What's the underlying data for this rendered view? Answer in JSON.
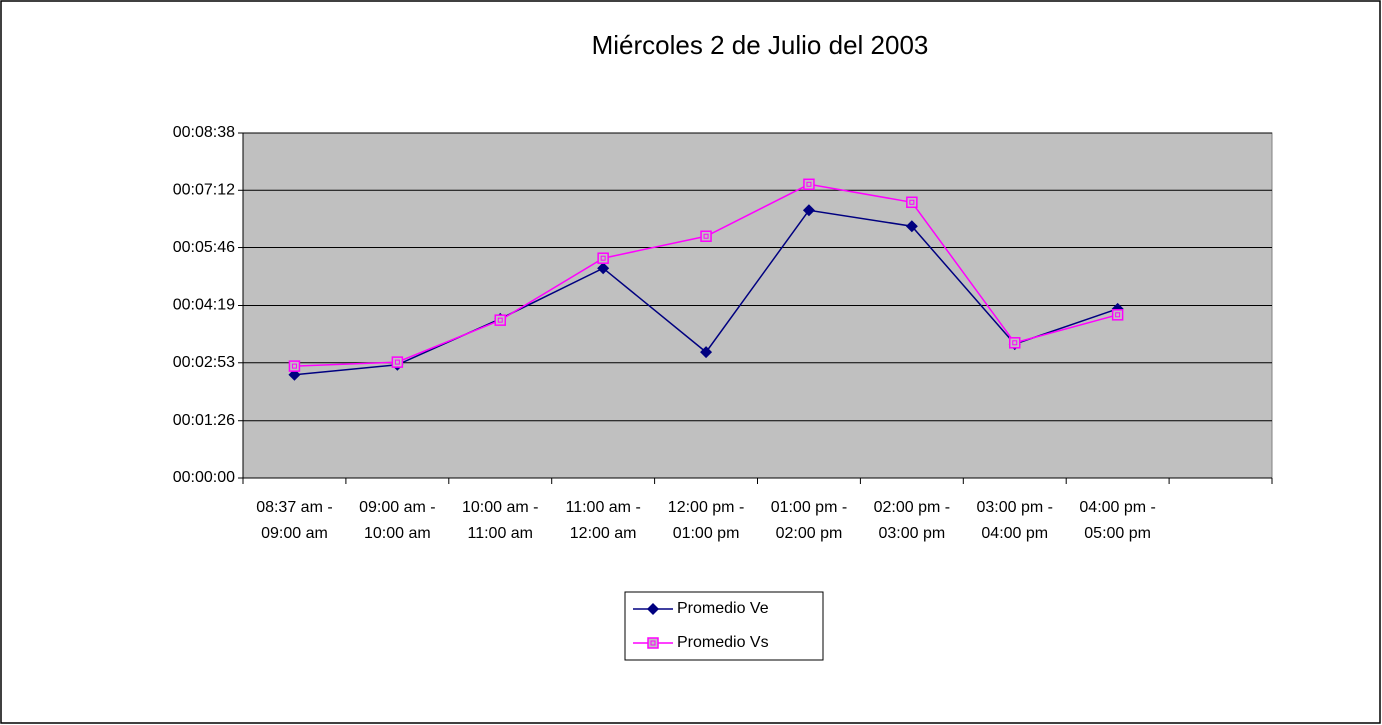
{
  "chart_data": {
    "type": "line",
    "title": "Miércoles 2 de Julio del 2003",
    "categories": [
      "08:37 am - 09:00 am",
      "09:00 am - 10:00 am",
      "10:00 am - 11:00 am",
      "11:00 am - 12:00 am",
      "12:00 pm - 01:00 pm",
      "01:00 pm - 02:00 pm",
      "02:00 pm - 03:00 pm",
      "03:00 pm - 04:00 pm",
      "04:00 pm - 05:00 pm",
      null
    ],
    "series": [
      {
        "name": "Promedio Ve",
        "color": "#000080",
        "marker": "diamond",
        "values": [
          155,
          170,
          239,
          315,
          189,
          402,
          378,
          201,
          254,
          null
        ]
      },
      {
        "name": "Promedio Vs",
        "color": "#ff00ff",
        "marker": "square",
        "values": [
          168,
          174,
          237,
          330,
          363,
          441,
          414,
          203,
          245,
          null
        ]
      }
    ],
    "ylim": [
      0,
      518
    ],
    "yticks": [
      {
        "value": 0,
        "label": "00:00:00"
      },
      {
        "value": 86,
        "label": "00:01:26"
      },
      {
        "value": 173,
        "label": "00:02:53"
      },
      {
        "value": 259,
        "label": "00:04:19"
      },
      {
        "value": 346,
        "label": "00:05:46"
      },
      {
        "value": 432,
        "label": "00:07:12"
      },
      {
        "value": 518,
        "label": "00:08:38"
      }
    ],
    "grid": true,
    "legend": "bottom"
  }
}
